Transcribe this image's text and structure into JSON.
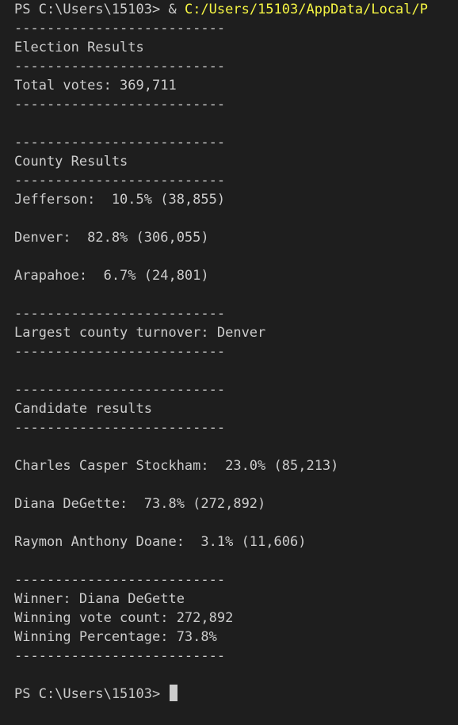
{
  "terminal": {
    "prompt": "PS C:\\Users\\15103> ",
    "command_amp": "& ",
    "command_path": "C:/Users/15103/AppData/Local/P",
    "rule": "--------------------------",
    "title": "Election Results",
    "total_votes": "Total votes: 369,711",
    "county_header": "County Results",
    "counties": [
      "Jefferson:  10.5% (38,855)",
      "Denver:  82.8% (306,055)",
      "Arapahoe:  6.7% (24,801)"
    ],
    "largest_county": "Largest county turnover: Denver",
    "candidate_header": "Candidate results",
    "candidates": [
      "Charles Casper Stockham:  23.0% (85,213)",
      "Diana DeGette:  73.8% (272,892)",
      "Raymon Anthony Doane:  3.1% (11,606)"
    ],
    "winner": "Winner: Diana DeGette",
    "winning_count": "Winning vote count: 272,892",
    "winning_pct": "Winning Percentage: 73.8%",
    "final_prompt": "PS C:\\Users\\15103> "
  }
}
